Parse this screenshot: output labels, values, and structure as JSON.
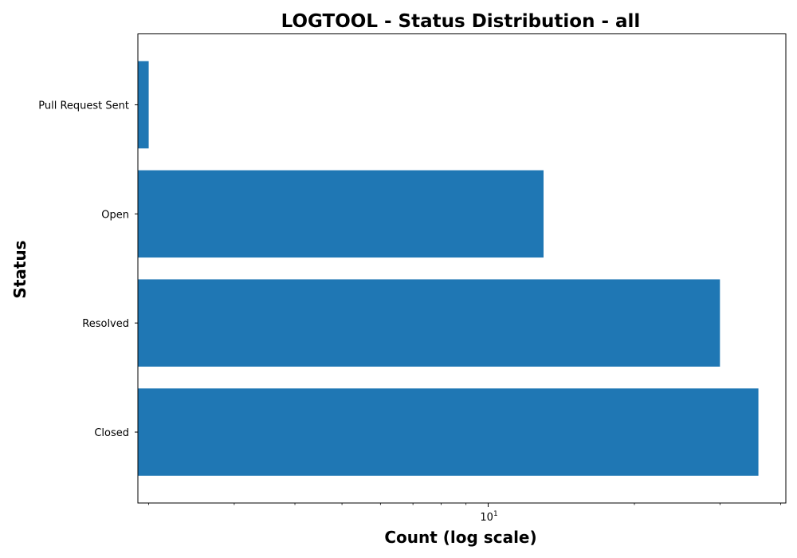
{
  "chart_data": {
    "type": "bar",
    "orientation": "horizontal",
    "title": "LOGTOOL - Status Distribution - all",
    "xlabel": "Count (log scale)",
    "ylabel": "Status",
    "xscale": "log",
    "xlim": [
      1.9,
      41
    ],
    "categories": [
      "Pull Request Sent",
      "Open",
      "Resolved",
      "Closed"
    ],
    "values": [
      2,
      13,
      30,
      36
    ],
    "x_major_ticks": [
      {
        "value": 10,
        "base": "10",
        "exponent": "1"
      }
    ],
    "x_minor_ticks": [
      2,
      3,
      4,
      5,
      6,
      7,
      8,
      9,
      20,
      30,
      40
    ],
    "bar_color": "#1f77b4",
    "grid": false,
    "legend": "none"
  }
}
